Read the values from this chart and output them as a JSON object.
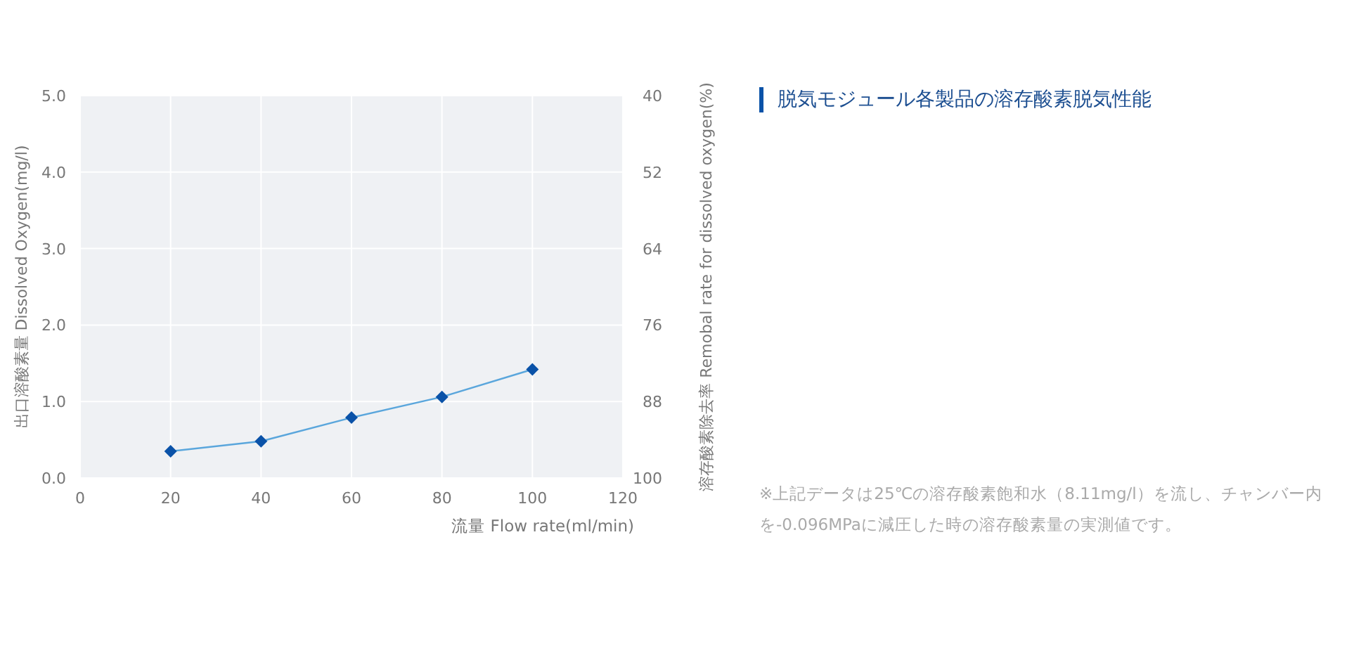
{
  "chart_data": {
    "type": "line",
    "title": "脱気モジュール各製品の溶存酸素脱気性能",
    "xlabel": "流量 Flow rate(ml/min)",
    "ylabel": "出口溶酸素量 Dissolved Oxygen(mg/l)",
    "y2label": "溶存酸素除去率 Remobal rate for dissolved oxygen(%)",
    "x": [
      20,
      40,
      60,
      80,
      100
    ],
    "series": [
      {
        "color": "#0a52a8",
        "values": [
          0.35,
          0.48,
          0.79,
          1.06,
          1.42
        ]
      }
    ],
    "xlim": [
      0,
      120
    ],
    "xticks": [
      0,
      20,
      40,
      60,
      80,
      100,
      120
    ],
    "ylim": [
      0,
      5
    ],
    "yticks": [
      {
        "value": 0,
        "label": "0.0"
      },
      {
        "value": 1,
        "label": "1.0"
      },
      {
        "value": 2,
        "label": "2.0"
      },
      {
        "value": 3,
        "label": "3.0"
      },
      {
        "value": 4,
        "label": "4.0"
      },
      {
        "value": 5,
        "label": "5.0"
      }
    ],
    "y2lim": [
      100,
      40
    ],
    "y2ticks": [
      40,
      52,
      64,
      76,
      88,
      100
    ],
    "marker": "diamond",
    "line_style": "solid",
    "grid": true,
    "annotations": [
      "※上記データは25℃の溶存酸素飽和水（8.11mg/l）を流し、チャンバー内を-0.096MPaに減圧した時の溶存酸素量の実測値です。"
    ]
  }
}
